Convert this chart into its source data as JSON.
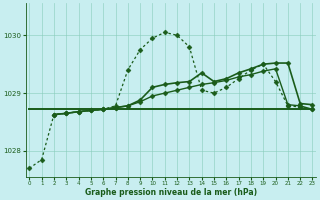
{
  "xlabel_label": "Graphe pression niveau de la mer (hPa)",
  "bg_color": "#c8eef0",
  "grid_color": "#88ccbb",
  "line_color": "#1a5c1a",
  "x_ticks": [
    0,
    1,
    2,
    3,
    4,
    5,
    6,
    7,
    8,
    9,
    10,
    11,
    12,
    13,
    14,
    15,
    16,
    17,
    18,
    19,
    20,
    21,
    22,
    23
  ],
  "xlim": [
    -0.3,
    23.3
  ],
  "ylim": [
    1027.55,
    1030.55
  ],
  "yticks": [
    1028,
    1029,
    1030
  ],
  "series": [
    {
      "x": [
        0,
        1,
        2,
        3,
        4,
        5,
        6,
        7,
        8,
        9,
        10,
        11,
        12,
        13,
        14,
        15,
        16,
        17,
        18,
        19,
        20,
        21,
        22,
        23
      ],
      "y": [
        1027.7,
        1027.85,
        1028.63,
        1028.65,
        1028.68,
        1028.7,
        1028.72,
        1028.78,
        1029.4,
        1029.75,
        1029.95,
        1030.05,
        1030.0,
        1029.8,
        1029.05,
        1029.0,
        1029.1,
        1029.25,
        1029.4,
        1029.5,
        1029.2,
        1028.78,
        1028.76,
        1028.72
      ],
      "style": "dotted",
      "marker": "D",
      "markersize": 2.5,
      "linewidth": 0.9
    },
    {
      "x": [
        2,
        3,
        4,
        5,
        6,
        7,
        8,
        9,
        10,
        11,
        12,
        13,
        14,
        15,
        16,
        17,
        18,
        19,
        20,
        21,
        22,
        23
      ],
      "y": [
        1028.63,
        1028.65,
        1028.68,
        1028.7,
        1028.72,
        1028.75,
        1028.78,
        1028.85,
        1028.95,
        1029.0,
        1029.05,
        1029.1,
        1029.15,
        1029.18,
        1029.22,
        1029.28,
        1029.32,
        1029.38,
        1029.42,
        1028.8,
        1028.78,
        1028.72
      ],
      "style": "solid",
      "marker": "D",
      "markersize": 2.5,
      "linewidth": 1.0
    },
    {
      "x": [
        2,
        3,
        4,
        5,
        6,
        7,
        8,
        9,
        10,
        11,
        12,
        13,
        14,
        15,
        16,
        17,
        18,
        19,
        20,
        21,
        22,
        23
      ],
      "y": [
        1028.63,
        1028.65,
        1028.68,
        1028.7,
        1028.72,
        1028.75,
        1028.78,
        1028.88,
        1029.1,
        1029.15,
        1029.18,
        1029.2,
        1029.35,
        1029.2,
        1029.25,
        1029.35,
        1029.42,
        1029.5,
        1029.52,
        1029.52,
        1028.82,
        1028.8
      ],
      "style": "solid",
      "marker": "D",
      "markersize": 2.5,
      "linewidth": 1.2
    },
    {
      "x": [
        0,
        23
      ],
      "y": [
        1028.72,
        1028.72
      ],
      "style": "solid",
      "marker": null,
      "markersize": 0,
      "linewidth": 1.4
    }
  ],
  "figwidth": 3.2,
  "figheight": 2.0,
  "dpi": 100
}
